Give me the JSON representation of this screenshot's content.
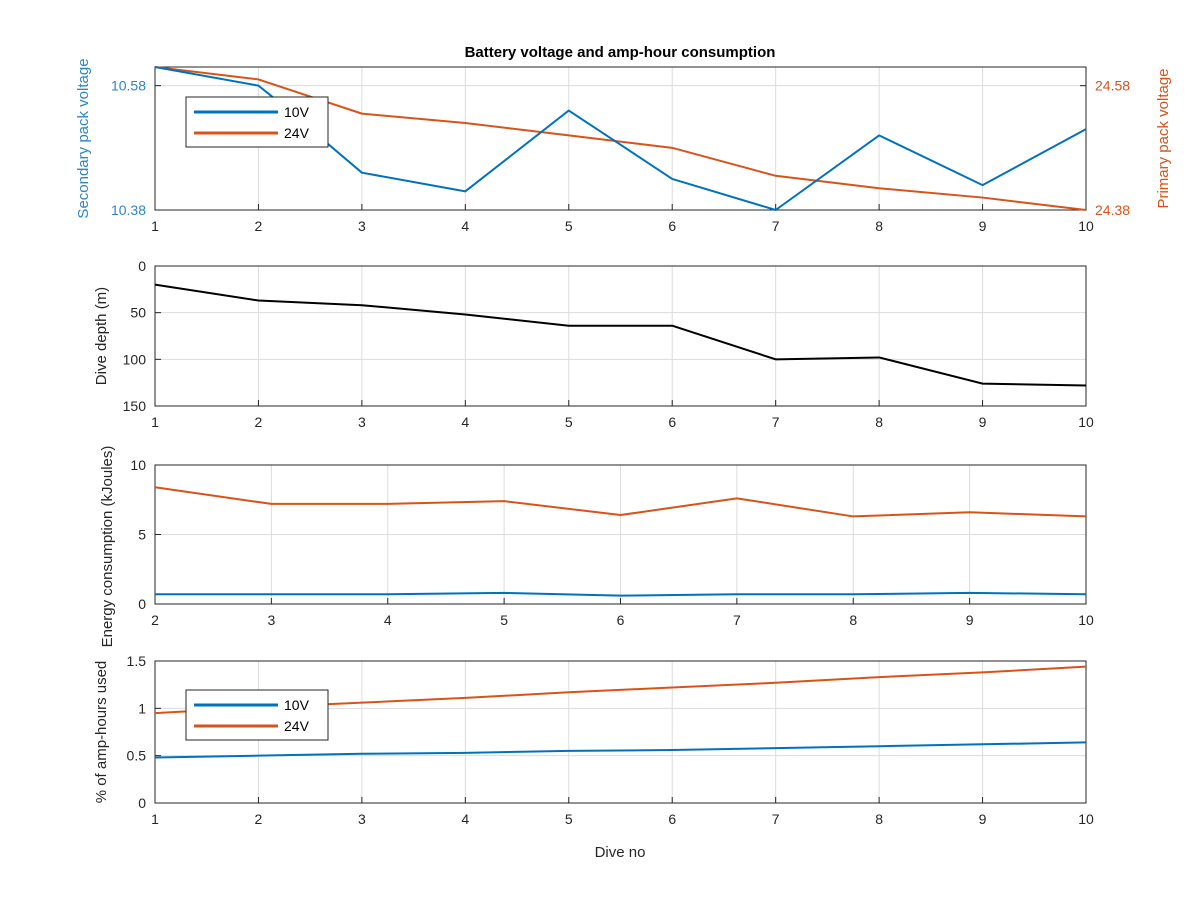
{
  "colors": {
    "series_10v": "#0072BD",
    "series_24v": "#D95319",
    "depth": "#000000",
    "left_axis_voltage": "#2e86c1",
    "right_axis_voltage": "#D95319"
  },
  "chart_data": [
    {
      "type": "line",
      "title": "Battery voltage and amp-hour consumption",
      "ylabel_left": "Secondary pack voltage",
      "ylabel_right": "Primary pack voltage",
      "xlabel": "",
      "xlim": [
        1,
        10
      ],
      "xticks": [
        "1",
        "2",
        "3",
        "4",
        "5",
        "6",
        "7",
        "8",
        "9",
        "10"
      ],
      "ylim_left": [
        10.38,
        10.61
      ],
      "yticks_left": [
        "10.38",
        "10.58"
      ],
      "ylim_right": [
        24.38,
        24.61
      ],
      "yticks_right": [
        "24.38",
        "24.58"
      ],
      "grid": true,
      "legend": "top-left",
      "series": [
        {
          "name": "10V",
          "axis": "left",
          "x": [
            1,
            2,
            2.15,
            3,
            4,
            5,
            6,
            7,
            8,
            9,
            10
          ],
          "values": [
            10.61,
            10.58,
            10.56,
            10.44,
            10.41,
            10.54,
            10.43,
            10.38,
            10.5,
            10.42,
            10.51
          ]
        },
        {
          "name": "24V",
          "axis": "right",
          "x": [
            1,
            2,
            3,
            4,
            5,
            6,
            7,
            8,
            9,
            10
          ],
          "values": [
            24.61,
            24.59,
            24.535,
            24.52,
            24.5,
            24.48,
            24.435,
            24.415,
            24.4,
            24.38
          ]
        }
      ]
    },
    {
      "type": "line",
      "title": "",
      "ylabel": "Dive depth (m)",
      "xlim": [
        1,
        10
      ],
      "xticks": [
        "1",
        "2",
        "3",
        "4",
        "5",
        "6",
        "7",
        "8",
        "9",
        "10"
      ],
      "ylim": [
        0,
        150
      ],
      "y_reversed": true,
      "yticks": [
        "0",
        "50",
        "100",
        "150"
      ],
      "grid": true,
      "series": [
        {
          "name": "",
          "x": [
            1,
            2,
            3,
            4,
            5,
            6,
            7,
            8,
            9,
            10
          ],
          "values": [
            20,
            37,
            42,
            52,
            64,
            64,
            100,
            98,
            126,
            128
          ]
        }
      ]
    },
    {
      "type": "line",
      "title": "",
      "ylabel": "Energy consumption (kJoules)",
      "xlim": [
        2,
        10
      ],
      "xticks": [
        "2",
        "3",
        "4",
        "5",
        "6",
        "7",
        "8",
        "9",
        "10"
      ],
      "ylim": [
        0,
        10
      ],
      "yticks": [
        "0",
        "5",
        "10"
      ],
      "grid": true,
      "series": [
        {
          "name": "",
          "x": [
            2,
            3,
            4,
            5,
            6,
            7,
            8,
            9,
            10
          ],
          "values": [
            8.4,
            7.2,
            7.2,
            7.4,
            6.4,
            7.6,
            6.3,
            6.6,
            6.3
          ]
        },
        {
          "name": "",
          "x": [
            2,
            3,
            4,
            5,
            6,
            7,
            8,
            9,
            10
          ],
          "values": [
            0.7,
            0.7,
            0.7,
            0.8,
            0.6,
            0.7,
            0.7,
            0.8,
            0.7
          ]
        }
      ]
    },
    {
      "type": "line",
      "title": "",
      "ylabel": "% of amp-hours used",
      "xlabel": "Dive no",
      "xlim": [
        1,
        10
      ],
      "xticks": [
        "1",
        "2",
        "3",
        "4",
        "5",
        "6",
        "7",
        "8",
        "9",
        "10"
      ],
      "ylim": [
        0,
        1.5
      ],
      "yticks": [
        "0",
        "0.5",
        "1",
        "1.5"
      ],
      "grid": true,
      "legend": "middle-left",
      "series": [
        {
          "name": "10V",
          "x": [
            1,
            2,
            3,
            4,
            5,
            6,
            7,
            8,
            9,
            10
          ],
          "values": [
            0.48,
            0.5,
            0.52,
            0.53,
            0.55,
            0.56,
            0.58,
            0.6,
            0.62,
            0.64
          ]
        },
        {
          "name": "24V",
          "x": [
            1,
            2,
            3,
            4,
            5,
            6,
            7,
            8,
            9,
            10
          ],
          "values": [
            0.95,
            1.01,
            1.06,
            1.11,
            1.17,
            1.22,
            1.27,
            1.33,
            1.38,
            1.44
          ]
        }
      ]
    }
  ]
}
